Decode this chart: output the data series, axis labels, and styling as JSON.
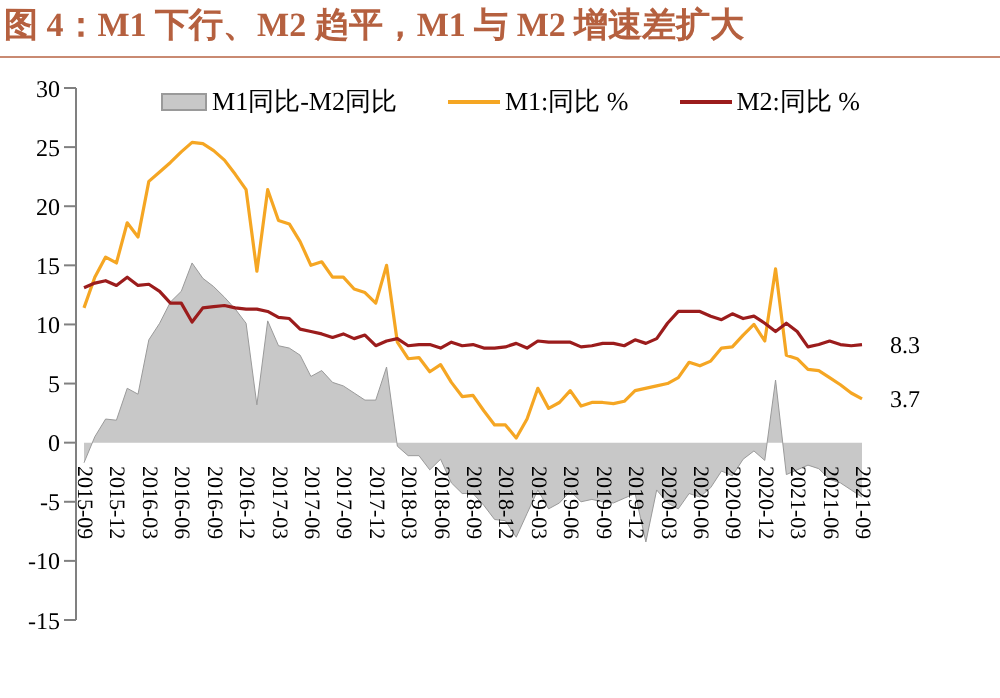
{
  "chart_data": {
    "type": "line",
    "title": "图 4：M1 下行、M2 趋平，M1 与 M2 增速差扩大",
    "categories": [
      "2015-09",
      null,
      null,
      "2015-12",
      null,
      null,
      "2016-03",
      null,
      null,
      "2016-06",
      null,
      null,
      "2016-09",
      null,
      null,
      "2016-12",
      null,
      null,
      "2017-03",
      null,
      null,
      "2017-06",
      null,
      null,
      "2017-09",
      null,
      null,
      "2017-12",
      null,
      null,
      "2018-03",
      null,
      null,
      "2018-06",
      null,
      null,
      "2018-09",
      null,
      null,
      "2018-12",
      null,
      null,
      "2019-03",
      null,
      null,
      "2019-06",
      null,
      null,
      "2019-09",
      null,
      null,
      "2019-12",
      null,
      null,
      "2020-03",
      null,
      null,
      "2020-06",
      null,
      null,
      "2020-09",
      null,
      null,
      "2020-12",
      null,
      null,
      "2021-03",
      null,
      null,
      "2021-06",
      null,
      null,
      "2021-09"
    ],
    "series": [
      {
        "name": "M1同比-M2同比",
        "type": "area",
        "color": "#c8c8c8",
        "values": [
          -1.7,
          0.5,
          2.0,
          1.9,
          4.6,
          4.1,
          8.7,
          10.1,
          11.9,
          12.8,
          15.2,
          13.9,
          13.2,
          12.3,
          11.3,
          10.1,
          3.2,
          10.3,
          8.2,
          8.0,
          7.4,
          5.6,
          6.1,
          5.1,
          4.8,
          4.2,
          3.6,
          3.6,
          6.4,
          -0.3,
          -1.1,
          -1.1,
          -2.3,
          -1.4,
          -3.4,
          -4.3,
          -4.3,
          -5.3,
          -6.5,
          -6.6,
          -8.0,
          -6.0,
          -4.0,
          -5.6,
          -5.1,
          -4.1,
          -5.0,
          -4.8,
          -5.0,
          -5.1,
          -4.7,
          -4.3,
          -8.4,
          -4.0,
          -5.1,
          -5.6,
          -4.3,
          -4.6,
          -3.8,
          -2.4,
          -2.8,
          -1.4,
          -0.7,
          -1.5,
          5.3,
          -2.7,
          -2.3,
          -1.9,
          -2.2,
          -3.1,
          -3.4,
          -4.0,
          -4.6
        ]
      },
      {
        "name": "M1:同比 %",
        "type": "line",
        "color": "#f5a623",
        "values": [
          11.4,
          14.0,
          15.7,
          15.2,
          18.6,
          17.4,
          22.1,
          22.9,
          23.7,
          24.6,
          25.4,
          25.3,
          24.7,
          23.9,
          22.7,
          21.4,
          14.5,
          21.4,
          18.8,
          18.5,
          17.0,
          15.0,
          15.3,
          14.0,
          14.0,
          13.0,
          12.7,
          11.8,
          15.0,
          8.5,
          7.1,
          7.2,
          6.0,
          6.6,
          5.1,
          3.9,
          4.0,
          2.7,
          1.5,
          1.5,
          0.4,
          2.0,
          4.6,
          2.9,
          3.4,
          4.4,
          3.1,
          3.4,
          3.4,
          3.3,
          3.5,
          4.4,
          null,
          4.8,
          5.0,
          5.5,
          6.8,
          6.5,
          6.9,
          8.0,
          8.1,
          9.1,
          10.0,
          8.6,
          14.7,
          7.4,
          7.1,
          6.2,
          6.1,
          5.5,
          4.9,
          4.2,
          3.7
        ],
        "value_labels": [
          null,
          null,
          null,
          null,
          null,
          null,
          null,
          null,
          null,
          null,
          null,
          null,
          null,
          null,
          null,
          null,
          null,
          null,
          null,
          null,
          null,
          null,
          null,
          null,
          null,
          null,
          null,
          null,
          null,
          null,
          null,
          null,
          null,
          null,
          null,
          null,
          null,
          null,
          null,
          null,
          null,
          null,
          null,
          null,
          null,
          null,
          null,
          null,
          null,
          null,
          null,
          null,
          null,
          null,
          null,
          null,
          null,
          null,
          null,
          null,
          null,
          null,
          null,
          null,
          null,
          null,
          null,
          null,
          null,
          null,
          null,
          null,
          "3.7"
        ]
      },
      {
        "name": "M2:同比 %",
        "type": "line",
        "color": "#9b1c1c",
        "values": [
          13.1,
          13.5,
          13.7,
          13.3,
          14.0,
          13.3,
          13.4,
          12.8,
          11.8,
          11.8,
          10.2,
          11.4,
          11.5,
          11.6,
          11.4,
          11.3,
          11.3,
          11.1,
          10.6,
          10.5,
          9.6,
          9.4,
          9.2,
          8.9,
          9.2,
          8.8,
          9.1,
          8.2,
          8.6,
          8.8,
          8.2,
          8.3,
          8.3,
          8.0,
          8.5,
          8.2,
          8.3,
          8.0,
          8.0,
          8.1,
          8.4,
          8.0,
          8.6,
          8.5,
          8.5,
          8.5,
          8.1,
          8.2,
          8.4,
          8.4,
          8.2,
          8.7,
          8.4,
          8.8,
          10.1,
          11.1,
          11.1,
          11.1,
          10.7,
          10.4,
          10.9,
          10.5,
          10.7,
          10.1,
          9.4,
          10.1,
          9.4,
          8.1,
          8.3,
          8.6,
          8.3,
          8.2,
          8.3
        ],
        "value_labels": [
          null,
          null,
          null,
          null,
          null,
          null,
          null,
          null,
          null,
          null,
          null,
          null,
          null,
          null,
          null,
          null,
          null,
          null,
          null,
          null,
          null,
          null,
          null,
          null,
          null,
          null,
          null,
          null,
          null,
          null,
          null,
          null,
          null,
          null,
          null,
          null,
          null,
          null,
          null,
          null,
          null,
          null,
          null,
          null,
          null,
          null,
          null,
          null,
          null,
          null,
          null,
          null,
          null,
          null,
          null,
          null,
          null,
          null,
          null,
          null,
          null,
          null,
          null,
          null,
          null,
          null,
          null,
          null,
          null,
          null,
          null,
          null,
          "8.3"
        ]
      }
    ],
    "ylim": [
      -15,
      30
    ],
    "yticks": [
      -15,
      -10,
      -5,
      0,
      5,
      10,
      15,
      20,
      25,
      30
    ],
    "grid": false,
    "legend": "top"
  }
}
